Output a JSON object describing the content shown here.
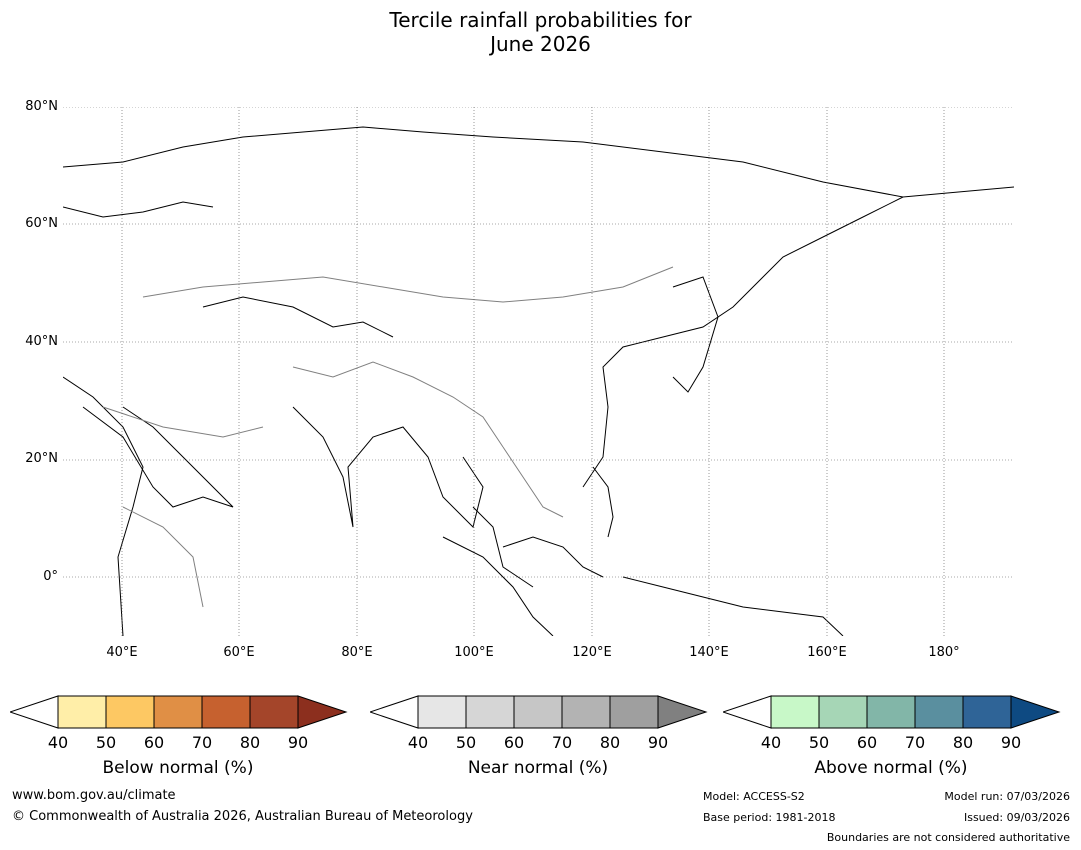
{
  "title": {
    "line1": "Tercile rainfall probabilities for",
    "line2": "June 2026"
  },
  "axes": {
    "lat_labels": [
      "80°N",
      "60°N",
      "40°N",
      "20°N",
      "0°"
    ],
    "lon_labels": [
      "40°E",
      "60°E",
      "80°E",
      "100°E",
      "120°E",
      "140°E",
      "160°E",
      "180°"
    ]
  },
  "legends": {
    "below": {
      "label": "Below normal (%)",
      "ticks": [
        "40",
        "50",
        "60",
        "70",
        "80",
        "90"
      ],
      "colors": [
        "#ffeea8",
        "#fdc863",
        "#e08f45",
        "#c6612f",
        "#a4452a",
        "#8c2f1e"
      ]
    },
    "near": {
      "label": "Near normal (%)",
      "ticks": [
        "40",
        "50",
        "60",
        "70",
        "80",
        "90"
      ],
      "colors": [
        "#e6e6e6",
        "#d6d6d6",
        "#c6c6c6",
        "#b3b3b3",
        "#9f9f9f",
        "#808080"
      ]
    },
    "above": {
      "label": "Above normal (%)",
      "ticks": [
        "40",
        "50",
        "60",
        "70",
        "80",
        "90"
      ],
      "colors": [
        "#c8f8c8",
        "#a6d6b6",
        "#82b6a8",
        "#5a8f9f",
        "#2f6497",
        "#0e4a82"
      ]
    }
  },
  "footer": {
    "website": "www.bom.gov.au/climate",
    "copyright": "© Commonwealth of Australia 2026, Australian Bureau of Meteorology",
    "model": "Model: ACCESS-S2",
    "base_period": "Base period: 1981-2018",
    "model_run": "Model run: 07/03/2026",
    "issued": "Issued: 09/03/2026",
    "boundaries": "Boundaries are not considered authoritative"
  }
}
